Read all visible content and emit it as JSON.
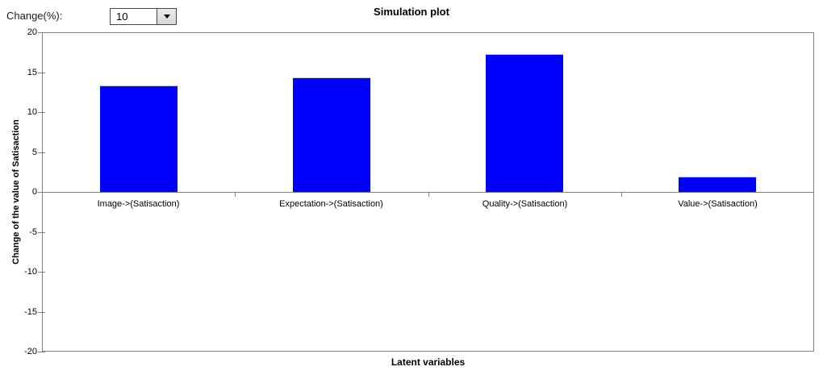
{
  "controls": {
    "change_label": "Change(%):",
    "change_value": "10"
  },
  "chart_data": {
    "type": "bar",
    "title": "Simulation plot",
    "xlabel": "Latent variables",
    "ylabel": "Change of the value of Satisaction",
    "categories": [
      "Image->(Satisaction)",
      "Expectation->(Satisaction)",
      "Quality->(Satisaction)",
      "Value->(Satisaction)"
    ],
    "values": [
      13.3,
      14.3,
      17.3,
      1.9
    ],
    "ylim": [
      -20,
      20
    ],
    "yticks": [
      20,
      15,
      10,
      5,
      0,
      -5,
      -10,
      -15,
      -20
    ],
    "grid": false,
    "legend_position": "none",
    "bar_color": "#0000ff",
    "bar_edge_color": "#c9c9d3",
    "axis_color": "#808080",
    "bar_width_fraction": 0.4
  }
}
